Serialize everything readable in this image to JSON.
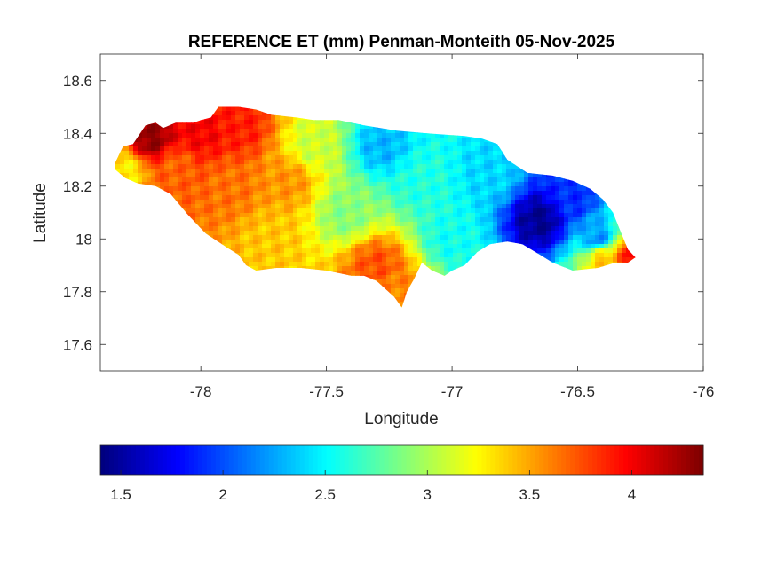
{
  "chart_data": {
    "type": "heatmap",
    "title": "REFERENCE ET (mm) Penman-Monteith 05-Nov-2025",
    "xlabel": "Longitude",
    "ylabel": "Latitude",
    "xlim": [
      -78.4,
      -76
    ],
    "ylim": [
      17.5,
      18.7
    ],
    "xticks": [
      -78,
      -77.5,
      -77,
      -76.5,
      -76
    ],
    "xtick_labels": [
      "-78",
      "-77.5",
      "-77",
      "-76.5",
      "-76"
    ],
    "yticks": [
      17.6,
      17.8,
      18,
      18.2,
      18.4,
      18.6
    ],
    "ytick_labels": [
      "17.6",
      "17.8",
      "18",
      "18.2",
      "18.4",
      "18.6"
    ],
    "grid": false,
    "colormap": "jet",
    "colorbar": {
      "orientation": "horizontal",
      "placement": "bottom",
      "range": [
        1.4,
        4.35
      ],
      "ticks": [
        1.5,
        2,
        2.5,
        3,
        3.5,
        4
      ],
      "tick_labels": [
        "1.5",
        "2",
        "2.5",
        "3",
        "3.5",
        "4"
      ]
    },
    "region_outline": [
      [
        -78.35,
        18.27
      ],
      [
        -78.31,
        18.35
      ],
      [
        -78.27,
        18.36
      ],
      [
        -78.22,
        18.43
      ],
      [
        -78.18,
        18.44
      ],
      [
        -78.15,
        18.42
      ],
      [
        -78.1,
        18.44
      ],
      [
        -78.03,
        18.44
      ],
      [
        -78.0,
        18.45
      ],
      [
        -77.96,
        18.46
      ],
      [
        -77.93,
        18.5
      ],
      [
        -77.85,
        18.5
      ],
      [
        -77.78,
        18.49
      ],
      [
        -77.72,
        18.47
      ],
      [
        -77.62,
        18.46
      ],
      [
        -77.55,
        18.45
      ],
      [
        -77.45,
        18.45
      ],
      [
        -77.35,
        18.43
      ],
      [
        -77.22,
        18.41
      ],
      [
        -77.1,
        18.4
      ],
      [
        -76.95,
        18.39
      ],
      [
        -76.88,
        18.38
      ],
      [
        -76.82,
        18.36
      ],
      [
        -76.78,
        18.3
      ],
      [
        -76.7,
        18.25
      ],
      [
        -76.6,
        18.24
      ],
      [
        -76.52,
        18.22
      ],
      [
        -76.45,
        18.19
      ],
      [
        -76.4,
        18.15
      ],
      [
        -76.36,
        18.1
      ],
      [
        -76.33,
        18.03
      ],
      [
        -76.3,
        17.96
      ],
      [
        -76.27,
        17.93
      ],
      [
        -76.3,
        17.91
      ],
      [
        -76.35,
        17.91
      ],
      [
        -76.42,
        17.89
      ],
      [
        -76.52,
        17.88
      ],
      [
        -76.6,
        17.91
      ],
      [
        -76.65,
        17.94
      ],
      [
        -76.72,
        17.98
      ],
      [
        -76.78,
        17.99
      ],
      [
        -76.85,
        17.98
      ],
      [
        -76.9,
        17.95
      ],
      [
        -76.95,
        17.9
      ],
      [
        -77.0,
        17.88
      ],
      [
        -77.03,
        17.86
      ],
      [
        -77.08,
        17.88
      ],
      [
        -77.12,
        17.91
      ],
      [
        -77.15,
        17.85
      ],
      [
        -77.18,
        17.8
      ],
      [
        -77.2,
        17.74
      ],
      [
        -77.23,
        17.78
      ],
      [
        -77.3,
        17.84
      ],
      [
        -77.35,
        17.86
      ],
      [
        -77.4,
        17.86
      ],
      [
        -77.5,
        17.88
      ],
      [
        -77.6,
        17.89
      ],
      [
        -77.7,
        17.89
      ],
      [
        -77.78,
        17.88
      ],
      [
        -77.82,
        17.9
      ],
      [
        -77.85,
        17.94
      ],
      [
        -77.9,
        17.97
      ],
      [
        -77.98,
        18.02
      ],
      [
        -78.05,
        18.09
      ],
      [
        -78.12,
        18.17
      ],
      [
        -78.18,
        18.2
      ],
      [
        -78.25,
        18.21
      ],
      [
        -78.3,
        18.23
      ],
      [
        -78.35,
        18.27
      ]
    ],
    "field_centers": [
      {
        "lon": -78.2,
        "lat": 18.38,
        "value": 4.3
      },
      {
        "lon": -78.0,
        "lat": 18.4,
        "value": 4.0
      },
      {
        "lon": -77.85,
        "lat": 18.42,
        "value": 3.9
      },
      {
        "lon": -78.1,
        "lat": 18.27,
        "value": 3.7
      },
      {
        "lon": -77.88,
        "lat": 18.2,
        "value": 3.65
      },
      {
        "lon": -77.65,
        "lat": 18.22,
        "value": 3.55
      },
      {
        "lon": -77.72,
        "lat": 18.0,
        "value": 3.4
      },
      {
        "lon": -77.55,
        "lat": 18.35,
        "value": 3.1
      },
      {
        "lon": -77.42,
        "lat": 18.1,
        "value": 2.9
      },
      {
        "lon": -77.3,
        "lat": 17.9,
        "value": 3.75
      },
      {
        "lon": -77.22,
        "lat": 17.8,
        "value": 3.6
      },
      {
        "lon": -77.28,
        "lat": 18.35,
        "value": 2.3
      },
      {
        "lon": -77.12,
        "lat": 18.22,
        "value": 2.6
      },
      {
        "lon": -77.0,
        "lat": 18.0,
        "value": 2.55
      },
      {
        "lon": -76.85,
        "lat": 18.25,
        "value": 2.4
      },
      {
        "lon": -76.65,
        "lat": 18.07,
        "value": 1.45
      },
      {
        "lon": -76.52,
        "lat": 18.15,
        "value": 1.9
      },
      {
        "lon": -76.42,
        "lat": 18.0,
        "value": 2.2
      },
      {
        "lon": -76.4,
        "lat": 17.93,
        "value": 3.4
      },
      {
        "lon": -76.28,
        "lat": 17.93,
        "value": 4.0
      },
      {
        "lon": -78.3,
        "lat": 18.26,
        "value": 3.3
      }
    ]
  }
}
